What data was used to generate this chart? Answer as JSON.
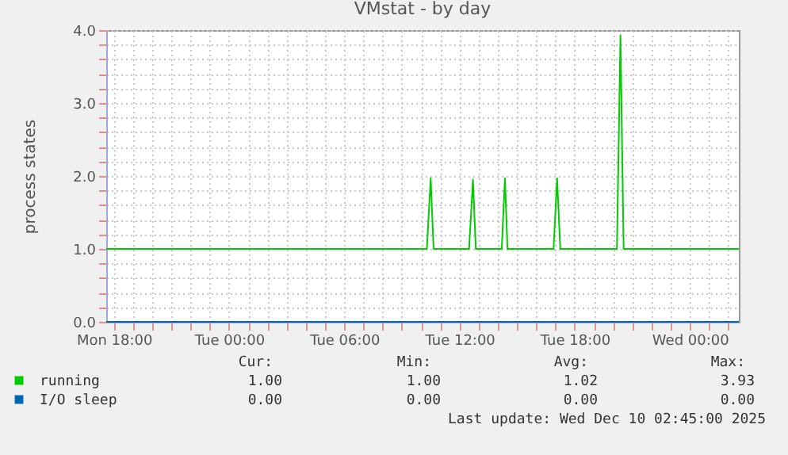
{
  "chart_data": {
    "type": "line",
    "title": "VMstat - by day",
    "ylabel": "process states",
    "x": [
      "2025-12-08T17:36",
      "2025-12-09T10:18",
      "2025-12-09T10:30",
      "2025-12-09T10:39",
      "2025-12-09T12:30",
      "2025-12-09T12:42",
      "2025-12-09T12:51",
      "2025-12-09T14:12",
      "2025-12-09T14:22",
      "2025-12-09T14:30",
      "2025-12-09T16:54",
      "2025-12-09T17:05",
      "2025-12-09T17:15",
      "2025-12-09T20:12",
      "2025-12-09T20:23",
      "2025-12-09T20:33",
      "2025-12-10T02:33"
    ],
    "series": [
      {
        "name": "running",
        "color": "#00cc00",
        "values": [
          1,
          1,
          1.97,
          1,
          1,
          1.95,
          1,
          1,
          1.97,
          1,
          1,
          1.97,
          1,
          1,
          3.93,
          1,
          1
        ]
      },
      {
        "name": "I/O sleep",
        "color": "#0066b3",
        "values": [
          0,
          0,
          0,
          0,
          0,
          0,
          0,
          0,
          0,
          0,
          0,
          0,
          0,
          0,
          0,
          0,
          0
        ]
      }
    ],
    "xlim": [
      "2025-12-08T17:36",
      "2025-12-10T02:33"
    ],
    "ylim": [
      0,
      4
    ],
    "xticks": [
      {
        "value": "2025-12-08T18:00",
        "label": "Mon 18:00"
      },
      {
        "value": "2025-12-08T19:00",
        "label": null
      },
      {
        "value": "2025-12-08T20:00",
        "label": null
      },
      {
        "value": "2025-12-08T21:00",
        "label": null
      },
      {
        "value": "2025-12-08T22:00",
        "label": null
      },
      {
        "value": "2025-12-08T23:00",
        "label": null
      },
      {
        "value": "2025-12-09T00:00",
        "label": "Tue 00:00"
      },
      {
        "value": "2025-12-09T01:00",
        "label": null
      },
      {
        "value": "2025-12-09T02:00",
        "label": null
      },
      {
        "value": "2025-12-09T03:00",
        "label": null
      },
      {
        "value": "2025-12-09T04:00",
        "label": null
      },
      {
        "value": "2025-12-09T05:00",
        "label": null
      },
      {
        "value": "2025-12-09T06:00",
        "label": "Tue 06:00"
      },
      {
        "value": "2025-12-09T07:00",
        "label": null
      },
      {
        "value": "2025-12-09T08:00",
        "label": null
      },
      {
        "value": "2025-12-09T09:00",
        "label": null
      },
      {
        "value": "2025-12-09T10:00",
        "label": null
      },
      {
        "value": "2025-12-09T11:00",
        "label": null
      },
      {
        "value": "2025-12-09T12:00",
        "label": "Tue 12:00"
      },
      {
        "value": "2025-12-09T13:00",
        "label": null
      },
      {
        "value": "2025-12-09T14:00",
        "label": null
      },
      {
        "value": "2025-12-09T15:00",
        "label": null
      },
      {
        "value": "2025-12-09T16:00",
        "label": null
      },
      {
        "value": "2025-12-09T17:00",
        "label": null
      },
      {
        "value": "2025-12-09T18:00",
        "label": "Tue 18:00"
      },
      {
        "value": "2025-12-09T19:00",
        "label": null
      },
      {
        "value": "2025-12-09T20:00",
        "label": null
      },
      {
        "value": "2025-12-09T21:00",
        "label": null
      },
      {
        "value": "2025-12-09T22:00",
        "label": null
      },
      {
        "value": "2025-12-09T23:00",
        "label": null
      },
      {
        "value": "2025-12-10T00:00",
        "label": "Wed 00:00"
      },
      {
        "value": "2025-12-10T01:00",
        "label": null
      },
      {
        "value": "2025-12-10T02:00",
        "label": null
      }
    ],
    "yticks": [
      {
        "value": 0,
        "label": "0.0"
      },
      {
        "value": 0.2,
        "label": null
      },
      {
        "value": 0.4,
        "label": null
      },
      {
        "value": 0.6,
        "label": null
      },
      {
        "value": 0.8,
        "label": null
      },
      {
        "value": 1,
        "label": "1.0"
      },
      {
        "value": 1.2,
        "label": null
      },
      {
        "value": 1.4,
        "label": null
      },
      {
        "value": 1.6,
        "label": null
      },
      {
        "value": 1.8,
        "label": null
      },
      {
        "value": 2,
        "label": "2.0"
      },
      {
        "value": 2.2,
        "label": null
      },
      {
        "value": 2.4,
        "label": null
      },
      {
        "value": 2.6,
        "label": null
      },
      {
        "value": 2.8,
        "label": null
      },
      {
        "value": 3,
        "label": "3.0"
      },
      {
        "value": 3.2,
        "label": null
      },
      {
        "value": 3.4,
        "label": null
      },
      {
        "value": 3.6,
        "label": null
      },
      {
        "value": 3.8,
        "label": null
      },
      {
        "value": 4,
        "label": "4.0"
      }
    ],
    "grid": true,
    "legend": "bottom",
    "marker": "none",
    "line_style": "solid",
    "annotations": [
      "Cur:",
      "Min:",
      "Avg:",
      "Max:",
      "1.00",
      "1.00",
      "1.02",
      "3.93",
      "0.00",
      "0.00",
      "0.00",
      "0.00",
      "Last update: Wed Dec 10 02:45:00 2025"
    ]
  }
}
